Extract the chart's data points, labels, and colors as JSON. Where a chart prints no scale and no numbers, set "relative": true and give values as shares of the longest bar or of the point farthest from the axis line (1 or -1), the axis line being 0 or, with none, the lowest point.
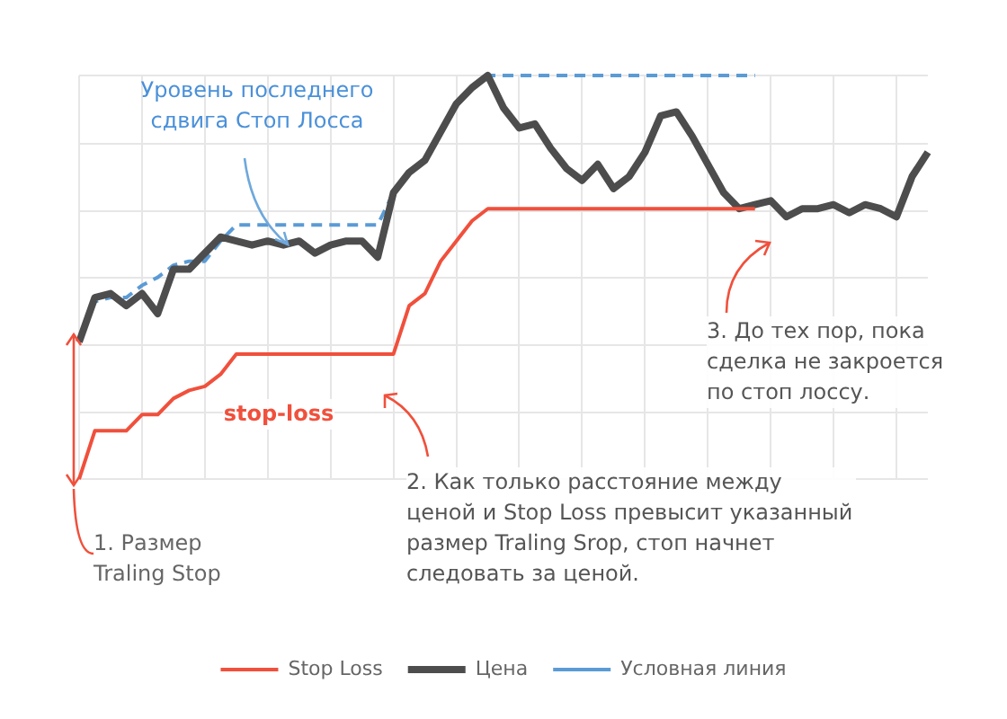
{
  "chart_data": {
    "type": "line",
    "relative": true,
    "grid": true,
    "legend": "bottom",
    "marker": "none",
    "categories": [
      null,
      null,
      null,
      null,
      null,
      null,
      null,
      null,
      null,
      null,
      null,
      null,
      null,
      null,
      null,
      null,
      null,
      null,
      null,
      null,
      null,
      null,
      null,
      null,
      null,
      null,
      null,
      null,
      null,
      null,
      null,
      null,
      null,
      null,
      null,
      null,
      null,
      null,
      null,
      null,
      null,
      null,
      null,
      null,
      null,
      null,
      null,
      null,
      null,
      null,
      null,
      null,
      null,
      null,
      null
    ],
    "series": [
      {
        "name": "Stop Loss",
        "color": "#f0503c",
        "line_style": "solid",
        "values": [
          0,
          0.12,
          0.12,
          0.12,
          0.16,
          0.16,
          0.2,
          0.22,
          0.23,
          0.26,
          0.31,
          0.31,
          0.31,
          0.31,
          0.31,
          0.31,
          0.31,
          0.31,
          0.31,
          0.31,
          0.31,
          0.43,
          0.46,
          0.54,
          0.59,
          0.64,
          0.67,
          0.67,
          0.67,
          0.67,
          0.67,
          0.67,
          0.67,
          0.67,
          0.67,
          0.67,
          0.67,
          0.67,
          0.67,
          0.67,
          0.67,
          0.67,
          0.67,
          0.67,
          null,
          null,
          null,
          null,
          null,
          null,
          null,
          null,
          null,
          null,
          null
        ]
      },
      {
        "name": "Цена",
        "color": "#4d4d4d",
        "line_style": "solid",
        "values": [
          0.34,
          0.45,
          0.46,
          0.43,
          0.46,
          0.41,
          0.52,
          0.52,
          0.56,
          0.6,
          0.59,
          0.58,
          0.59,
          0.58,
          0.59,
          0.56,
          0.58,
          0.59,
          0.59,
          0.55,
          0.71,
          0.76,
          0.79,
          0.86,
          0.93,
          0.97,
          1,
          0.92,
          0.87,
          0.88,
          0.82,
          0.77,
          0.74,
          0.78,
          0.72,
          0.75,
          0.81,
          0.9,
          0.91,
          0.85,
          0.78,
          0.71,
          0.67,
          0.68,
          0.69,
          0.65,
          0.67,
          0.67,
          0.68,
          0.66,
          0.68,
          0.67,
          0.65,
          0.75,
          0.81
        ]
      },
      {
        "name": "Условная линия",
        "color": "#5b9bd5",
        "line_style": "dashed",
        "values": [
          0.34,
          0.44,
          0.45,
          0.45,
          0.48,
          0.5,
          0.53,
          0.54,
          0.54,
          0.59,
          0.63,
          0.63,
          0.63,
          0.63,
          0.63,
          0.63,
          0.63,
          0.63,
          0.63,
          0.63,
          0.71,
          0.76,
          0.79,
          0.86,
          0.93,
          0.97,
          1,
          1,
          1,
          1,
          1,
          1,
          1,
          1,
          1,
          1,
          1,
          1,
          1,
          1,
          1,
          1,
          1,
          1,
          null,
          null,
          null,
          null,
          null,
          null,
          null,
          null,
          null,
          null,
          null
        ]
      }
    ],
    "annotations": [
      "Уровень последнего сдвига Стоп Лосса",
      "1. Размер Traling Stop",
      "2. Как только расстояние между ценой и Stop Loss превысит указанный размер Traling Srop, стоп начнет следовать за ценой.",
      "3. До тех пор, пока сделка не закроется по стоп лоссу.",
      "stop-loss"
    ]
  }
}
